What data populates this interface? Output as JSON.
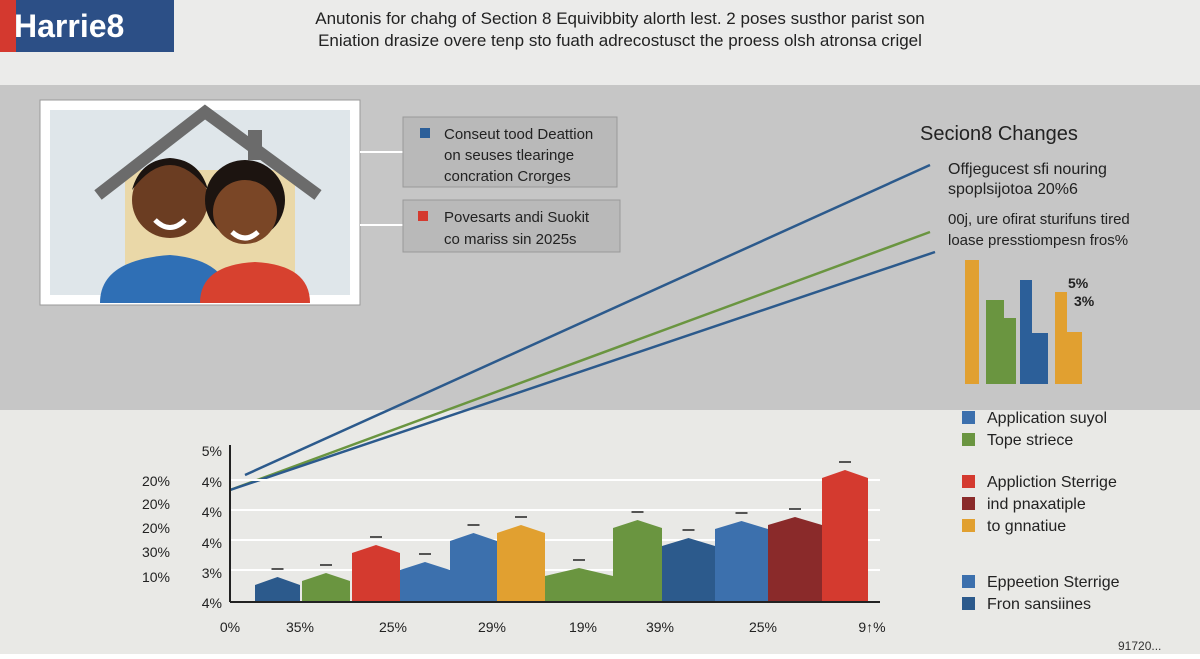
{
  "header": {
    "logo": "Harrie8",
    "lines": [
      "Anutonis for chahg of Section 8 Equivibbity alorth lest. 2 poses susthor parist son",
      "Eniation drasize overe tenp sto fuath adrecostusct the proess olsh atronsa crigel"
    ]
  },
  "callouts": [
    {
      "lines": [
        "Conseut tood Deattion",
        "on seuses tlearinge",
        "concration Crorges"
      ]
    },
    {
      "lines": [
        "Povesarts andi Suokit",
        "co mariss sin 2025s"
      ]
    }
  ],
  "side": {
    "title": "Secion8 Changes",
    "lines": [
      "Offjegucest sfi nouring",
      "spoplsijotoa 20%6",
      "00j, ure ofirat sturifuns tired",
      "loase presstiompesn fros%"
    ],
    "mini_labels": [
      "5%",
      "3%"
    ]
  },
  "chart": {
    "y_labels_outer": [
      "20%",
      "20%",
      "20%",
      "30%",
      "10%"
    ],
    "y_labels_inner": [
      "5%",
      "4%",
      "4%",
      "4%",
      "3%",
      "4%"
    ],
    "x_labels": [
      "0%",
      "35%",
      "25%",
      "29%",
      "19%",
      "39%",
      "25%",
      "9↑%"
    ]
  },
  "legend": [
    [
      "Application suyol",
      "Tope striece"
    ],
    [
      "Appliction Sterrige",
      "ind pnaxatiple",
      "to gnnatiue"
    ],
    [
      "Eppeetion Sterrige",
      "Fron sansiines"
    ]
  ],
  "footer": "91720..."
}
